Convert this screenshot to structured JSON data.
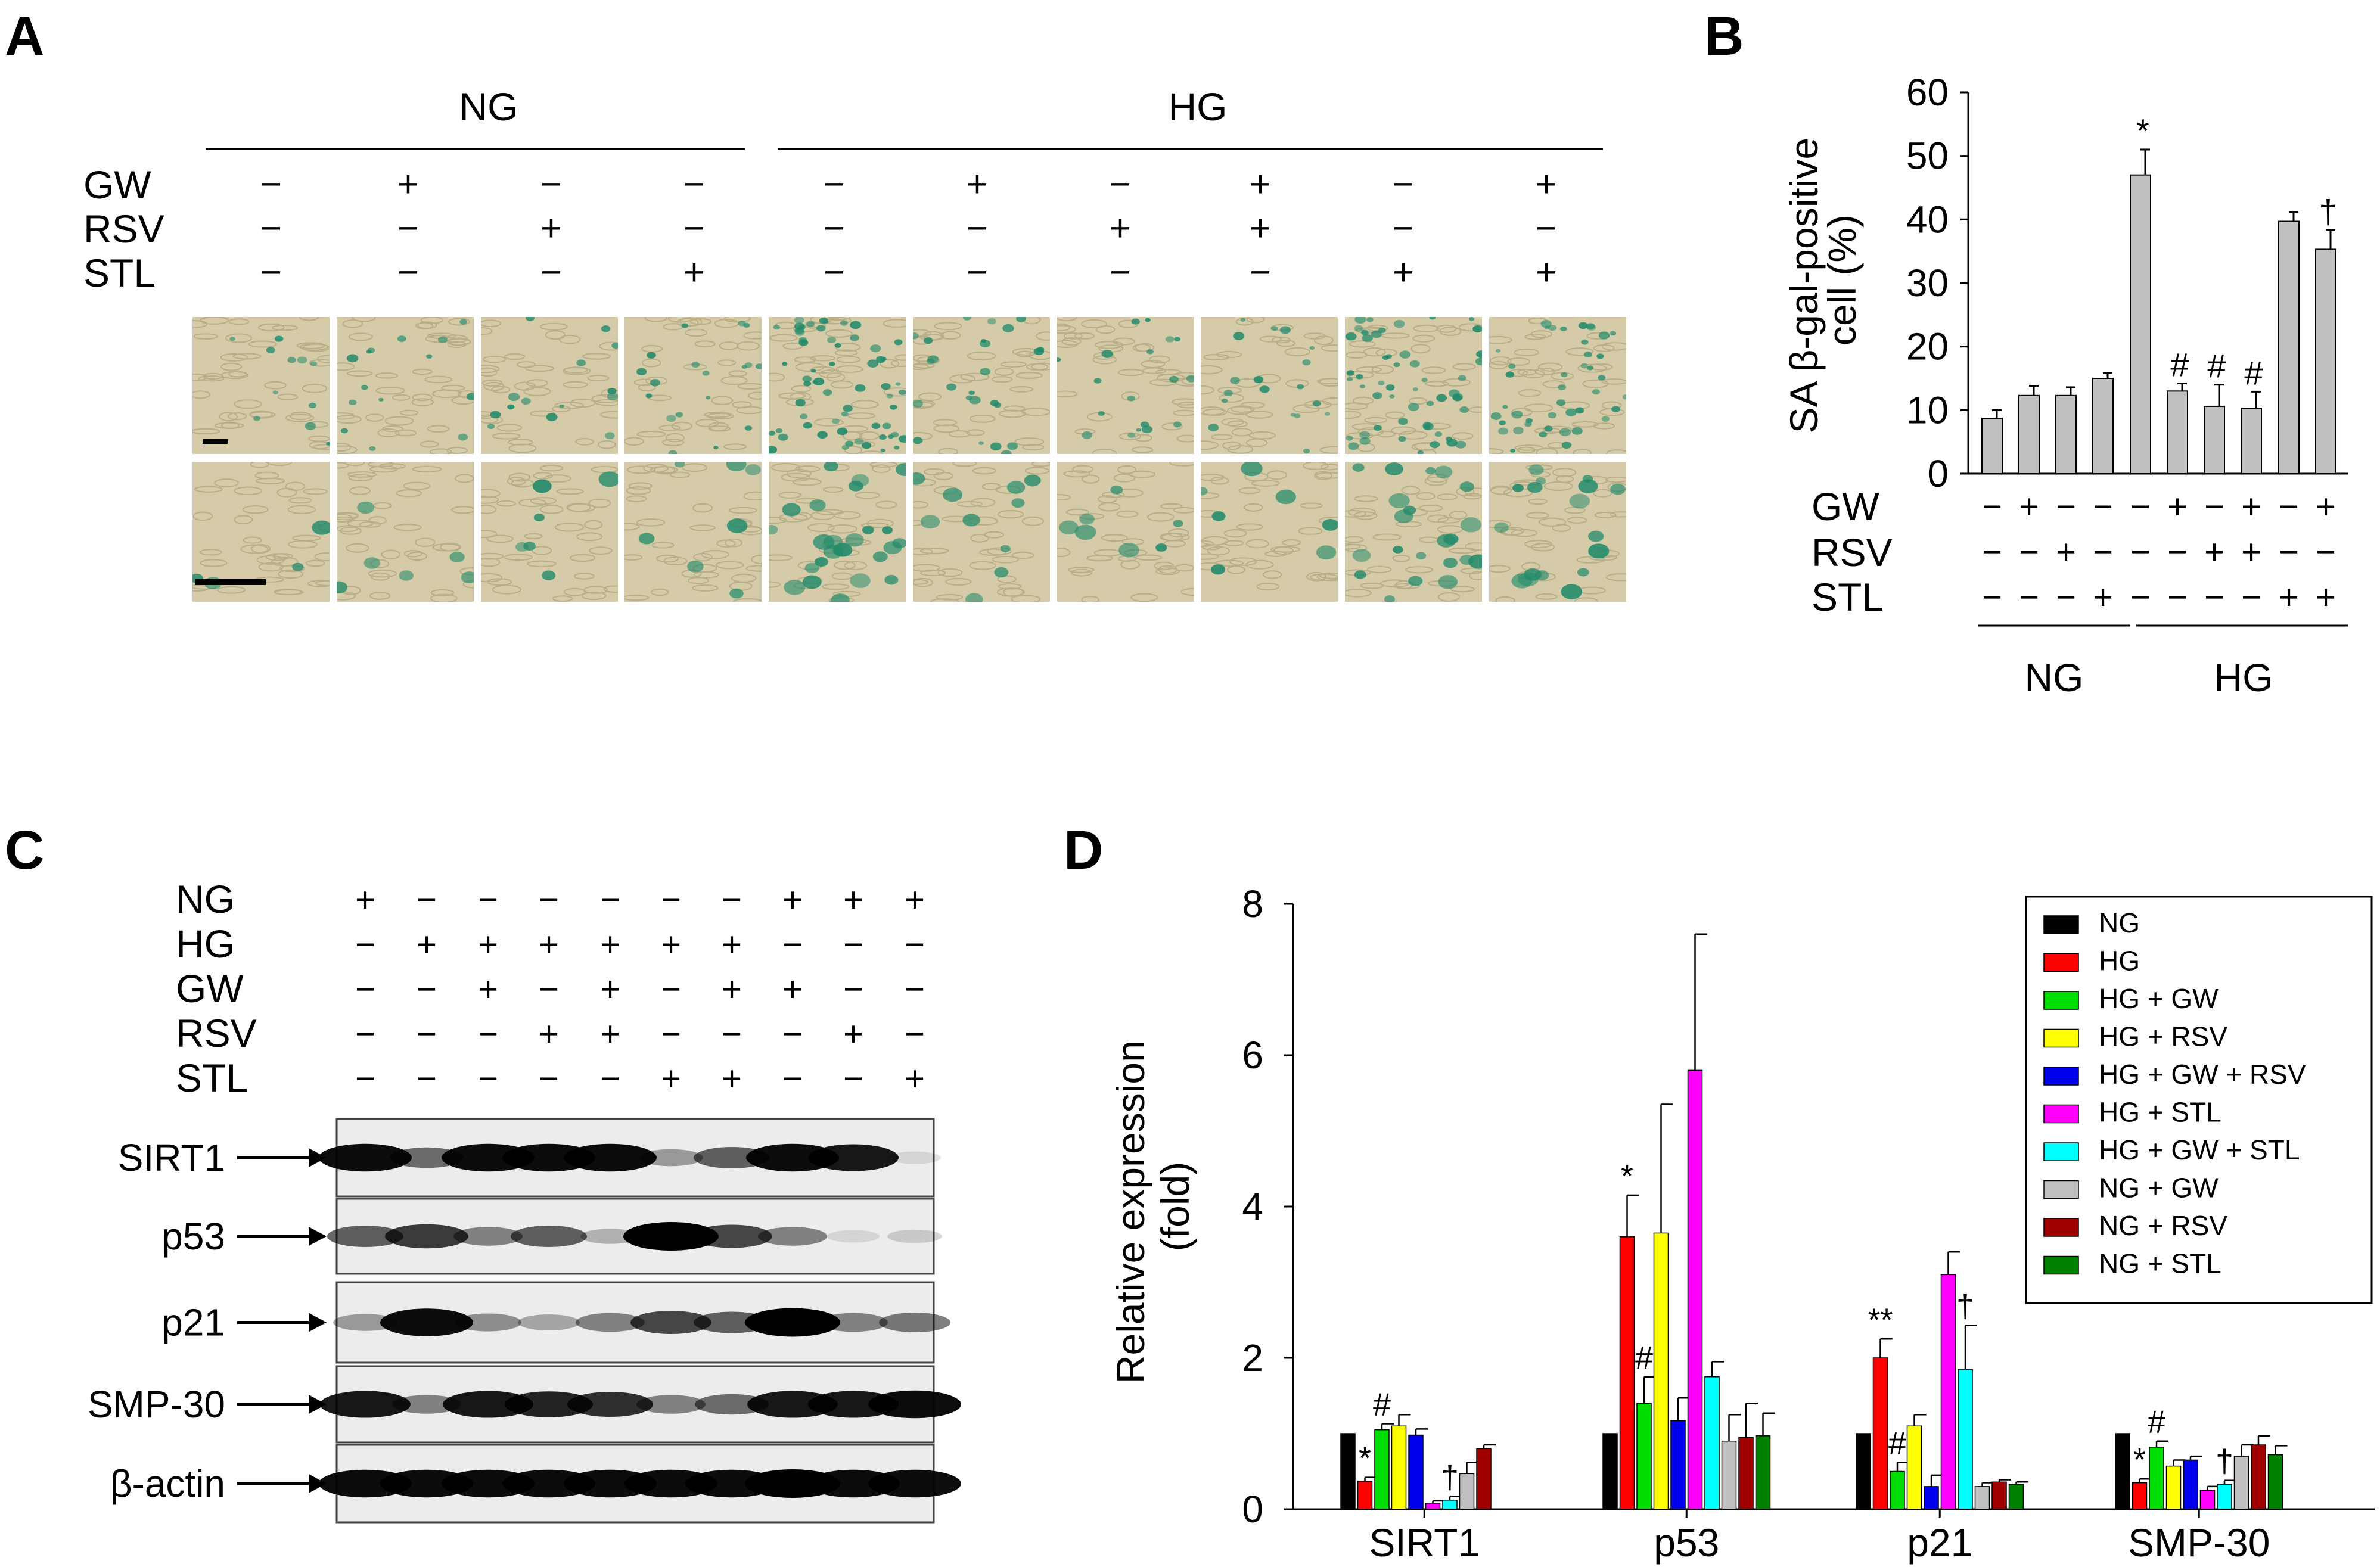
{
  "panels": {
    "A": "A",
    "B": "B",
    "C": "C",
    "D": "D"
  },
  "treatments": {
    "GW": "GW",
    "RSV": "RSV",
    "STL": "STL",
    "NG": "NG",
    "HG": "HG",
    "plus": "+",
    "minus": "−"
  },
  "panel_a": {
    "group_labels": [
      "NG",
      "HG"
    ],
    "row_labels": [
      "GW",
      "RSV",
      "STL"
    ],
    "signs": {
      "GW": [
        "-",
        "+",
        "-",
        "-",
        "-",
        "+",
        "-",
        "+",
        "-",
        "+"
      ],
      "RSV": [
        "-",
        "-",
        "+",
        "-",
        "-",
        "-",
        "+",
        "+",
        "-",
        "-"
      ],
      "STL": [
        "-",
        "-",
        "-",
        "+",
        "-",
        "-",
        "-",
        "-",
        "+",
        "+"
      ]
    },
    "staining_density": [
      0.15,
      0.2,
      0.2,
      0.25,
      0.85,
      0.35,
      0.25,
      0.25,
      0.75,
      0.6
    ],
    "colors": {
      "background": "#d5cba8",
      "stain": "#1f8a6a"
    }
  },
  "panel_c": {
    "row_labels": [
      "NG",
      "HG",
      "GW",
      "RSV",
      "STL"
    ],
    "signs": {
      "NG": [
        "+",
        "-",
        "-",
        "-",
        "-",
        "-",
        "-",
        "+",
        "+",
        "+"
      ],
      "HG": [
        "-",
        "+",
        "+",
        "+",
        "+",
        "+",
        "+",
        "-",
        "-",
        "-"
      ],
      "GW": [
        "-",
        "-",
        "+",
        "-",
        "+",
        "-",
        "+",
        "+",
        "-",
        "-"
      ],
      "RSV": [
        "-",
        "-",
        "-",
        "+",
        "+",
        "-",
        "-",
        "-",
        "+",
        "-"
      ],
      "STL": [
        "-",
        "-",
        "-",
        "-",
        "-",
        "+",
        "+",
        "-",
        "-",
        "+"
      ]
    },
    "blots": [
      {
        "name": "SIRT1",
        "intensity": [
          0.95,
          0.55,
          0.95,
          0.95,
          0.95,
          0.35,
          0.6,
          0.95,
          0.9,
          0.1
        ]
      },
      {
        "name": "p53",
        "intensity": [
          0.6,
          0.75,
          0.45,
          0.6,
          0.25,
          1.0,
          0.7,
          0.45,
          0.1,
          0.15
        ]
      },
      {
        "name": "p21",
        "intensity": [
          0.35,
          0.95,
          0.4,
          0.3,
          0.45,
          0.7,
          0.6,
          1.0,
          0.45,
          0.5
        ]
      },
      {
        "name": "SMP-30",
        "intensity": [
          0.9,
          0.45,
          0.9,
          0.85,
          0.8,
          0.45,
          0.55,
          0.9,
          0.9,
          0.95
        ]
      },
      {
        "name": "β-actin",
        "intensity": [
          0.95,
          0.95,
          0.95,
          0.95,
          0.95,
          0.95,
          0.95,
          1.0,
          0.95,
          0.95
        ]
      }
    ]
  },
  "chart_data": [
    {
      "id": "B",
      "type": "bar",
      "ylabel_line1": "SA β-gal-positive",
      "ylabel_line2": "cell (%)",
      "ylim": [
        0,
        60
      ],
      "yticks": [
        0,
        10,
        20,
        30,
        40,
        50,
        60
      ],
      "values": [
        8.7,
        12.3,
        12.3,
        15.0,
        47.0,
        13.0,
        10.6,
        10.3,
        39.7,
        35.3
      ],
      "errors": [
        1.3,
        1.5,
        1.3,
        0.8,
        4.0,
        1.2,
        3.4,
        2.6,
        1.5,
        3.0
      ],
      "annotations": [
        "",
        "",
        "",
        "",
        "*",
        "#",
        "#",
        "#",
        "",
        "†"
      ],
      "bar_color": "#c0c0c0",
      "row_labels": [
        "GW",
        "RSV",
        "STL"
      ],
      "signs": {
        "GW": [
          "-",
          "+",
          "-",
          "-",
          "-",
          "+",
          "-",
          "+",
          "-",
          "+"
        ],
        "RSV": [
          "-",
          "-",
          "+",
          "-",
          "-",
          "-",
          "+",
          "+",
          "-",
          "-"
        ],
        "STL": [
          "-",
          "-",
          "-",
          "+",
          "-",
          "-",
          "-",
          "-",
          "+",
          "+"
        ]
      },
      "group_labels": [
        "NG",
        "HG"
      ]
    },
    {
      "id": "D",
      "type": "bar",
      "ylabel_line1": "Relative expression",
      "ylabel_line2": "(fold)",
      "ylim": [
        0,
        8
      ],
      "yticks": [
        0,
        2,
        4,
        6,
        8
      ],
      "categories": [
        "SIRT1",
        "p53",
        "p21",
        "SMP-30"
      ],
      "series": [
        {
          "name": "NG",
          "color": "#000000",
          "values": [
            1.0,
            1.0,
            1.0,
            1.0
          ],
          "errors": [
            0,
            0,
            0,
            0
          ]
        },
        {
          "name": "HG",
          "color": "#ff0000",
          "values": [
            0.37,
            3.6,
            2.0,
            0.35
          ],
          "errors": [
            0.05,
            0.55,
            0.25,
            0.05
          ]
        },
        {
          "name": "HG + GW",
          "color": "#00dd00",
          "values": [
            1.05,
            1.4,
            0.5,
            0.82
          ],
          "errors": [
            0.08,
            0.35,
            0.12,
            0.08
          ]
        },
        {
          "name": "HG + RSV",
          "color": "#ffff00",
          "values": [
            1.1,
            3.65,
            1.1,
            0.57
          ],
          "errors": [
            0.15,
            1.7,
            0.15,
            0.08
          ]
        },
        {
          "name": "HG + GW + RSV",
          "color": "#0000ee",
          "values": [
            0.98,
            1.17,
            0.3,
            0.65
          ],
          "errors": [
            0.08,
            0.3,
            0.15,
            0.05
          ]
        },
        {
          "name": "HG + STL",
          "color": "#ff00ff",
          "values": [
            0.08,
            5.8,
            3.1,
            0.25
          ],
          "errors": [
            0.03,
            1.8,
            0.3,
            0.05
          ]
        },
        {
          "name": "HG + GW + STL",
          "color": "#00ffff",
          "values": [
            0.12,
            1.75,
            1.85,
            0.33
          ],
          "errors": [
            0.05,
            0.2,
            0.58,
            0.05
          ]
        },
        {
          "name": "NG + GW",
          "color": "#c0c0c0",
          "values": [
            0.47,
            0.9,
            0.3,
            0.7
          ],
          "errors": [
            0.15,
            0.35,
            0.05,
            0.15
          ]
        },
        {
          "name": "NG + RSV",
          "color": "#a00000",
          "values": [
            0.8,
            0.95,
            0.36,
            0.85
          ],
          "errors": [
            0.05,
            0.45,
            0.03,
            0.12
          ]
        },
        {
          "name": "NG + STL",
          "color": "#008000",
          "values": [
            null,
            0.97,
            0.33,
            0.72
          ],
          "errors": [
            0,
            0.3,
            0.03,
            0.12
          ]
        }
      ],
      "annotations": [
        {
          "category": 0,
          "series": 1,
          "text": "*"
        },
        {
          "category": 0,
          "series": 2,
          "text": "#"
        },
        {
          "category": 0,
          "series": 6,
          "text": "†"
        },
        {
          "category": 1,
          "series": 1,
          "text": "*"
        },
        {
          "category": 1,
          "series": 2,
          "text": "#"
        },
        {
          "category": 2,
          "series": 1,
          "text": "**"
        },
        {
          "category": 2,
          "series": 2,
          "text": "#"
        },
        {
          "category": 2,
          "series": 6,
          "text": "†"
        },
        {
          "category": 3,
          "series": 1,
          "text": "*"
        },
        {
          "category": 3,
          "series": 2,
          "text": "#"
        },
        {
          "category": 3,
          "series": 6,
          "text": "†"
        }
      ],
      "legend_position": "top-right"
    }
  ]
}
